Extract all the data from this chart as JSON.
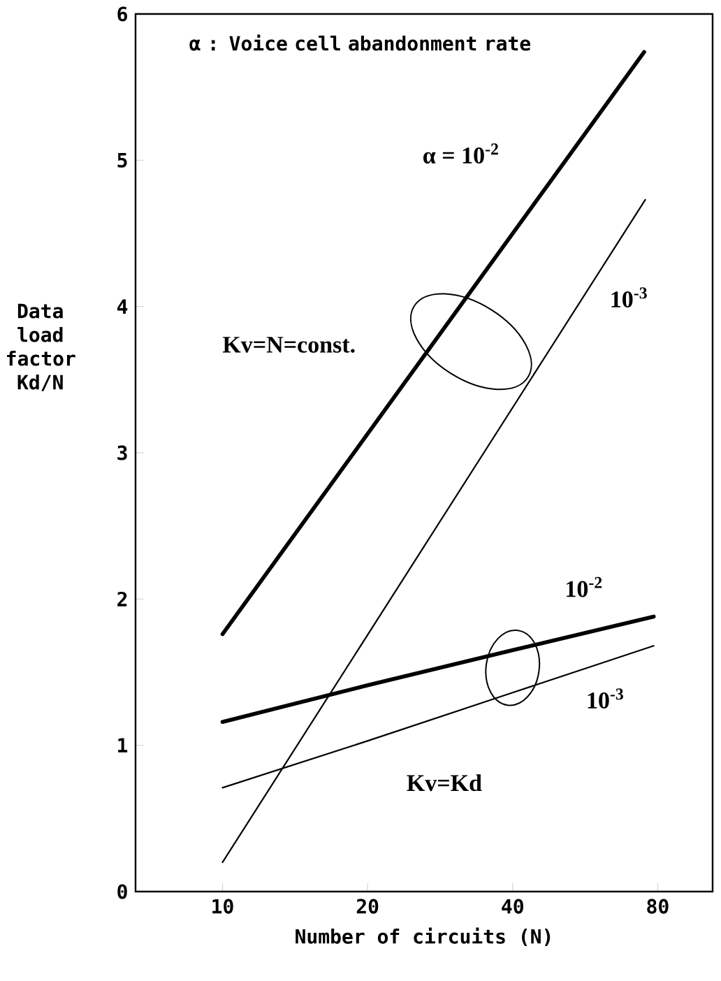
{
  "chart_data": {
    "type": "line",
    "xlabel": "Number of circuits (N)",
    "ylabel": "Data load factor Kd/N",
    "log": "x",
    "xlim": [
      6.6,
      104
    ],
    "xticks": [
      10,
      20,
      40,
      80
    ],
    "ylim": [
      0,
      6
    ],
    "yticks": [
      0,
      1,
      2,
      3,
      4,
      5,
      6
    ],
    "grid": false,
    "marker": "none",
    "line_style": "solid",
    "series": [
      {
        "color": "#000000",
        "x": [
          10,
          75
        ],
        "values": [
          1.76,
          5.74
        ]
      },
      {
        "color": "#000000",
        "x": [
          10,
          75.4
        ],
        "values": [
          0.2,
          4.73
        ]
      },
      {
        "color": "#000000",
        "x": [
          10,
          20,
          40,
          78.5
        ],
        "values": [
          1.16,
          1.41,
          1.65,
          1.88
        ]
      },
      {
        "color": "#000000",
        "x": [
          10,
          20,
          40,
          78.5
        ],
        "values": [
          0.71,
          1.03,
          1.36,
          1.68
        ]
      }
    ],
    "annotations": [
      "α : Voice cell abandonment rate",
      "α = 10$^{-2}$",
      "10$^{-3}$",
      "Kv=N=const.",
      "10$^{-2}$",
      "10$^{-3}$",
      "Kv=Kd"
    ]
  }
}
